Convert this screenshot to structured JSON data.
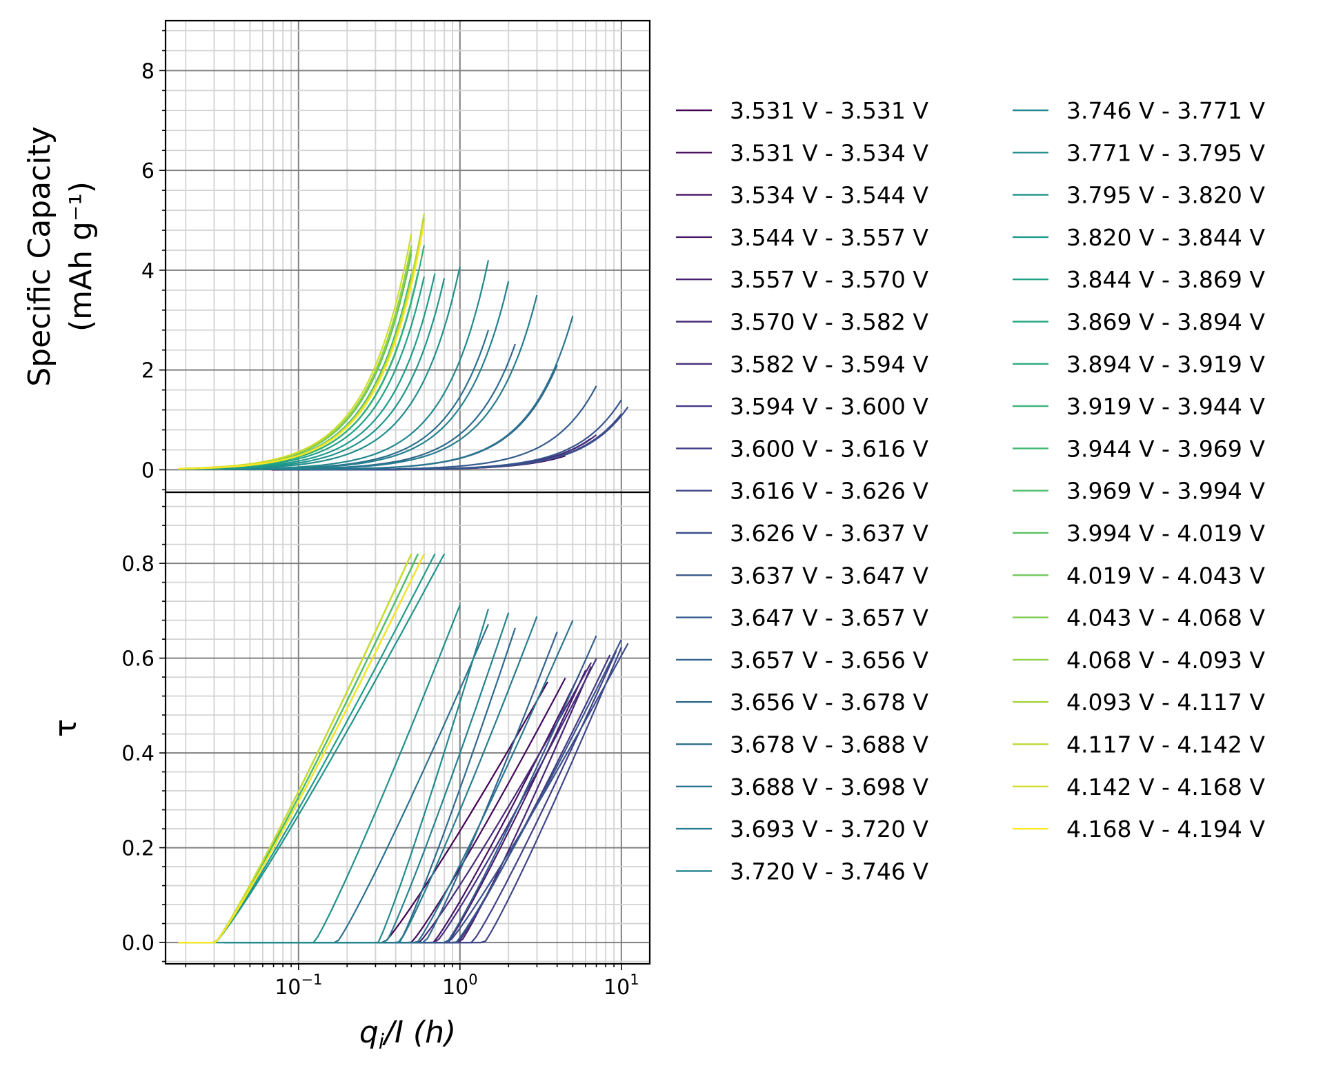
{
  "chart_data": [
    {
      "panel": "top",
      "type": "line",
      "xscale": "log",
      "xlim": [
        0.015,
        15
      ],
      "ylim": [
        -0.45,
        9.0
      ],
      "ylabel_lines": [
        "Specific Capacity",
        "(mAh g⁻¹)"
      ],
      "yticks": [
        0,
        2,
        4,
        6,
        8
      ],
      "ytick_labels": [
        "0",
        "2",
        "4",
        "6",
        "8"
      ],
      "grid": true
    },
    {
      "panel": "bottom",
      "type": "line",
      "xscale": "log",
      "xlim": [
        0.015,
        15
      ],
      "ylim": [
        -0.045,
        0.95
      ],
      "ylabel": "τ",
      "yticks": [
        0.0,
        0.2,
        0.4,
        0.6,
        0.8
      ],
      "ytick_labels": [
        "0.0",
        "0.2",
        "0.4",
        "0.6",
        "0.8"
      ],
      "xticks": [
        0.1,
        1,
        10
      ],
      "xtick_labels": [
        {
          "base": "10",
          "exp": "−1"
        },
        {
          "base": "10",
          "exp": "0"
        },
        {
          "base": "10",
          "exp": "1"
        }
      ],
      "xlabel": {
        "q": "q",
        "sub": "i",
        "rest": "/I (h)"
      },
      "grid": true
    }
  ],
  "legend": {
    "placement": "right of axes, two columns",
    "entries": [
      "3.531 V - 3.531 V",
      "3.531 V - 3.534 V",
      "3.534 V - 3.544 V",
      "3.544 V - 3.557 V",
      "3.557 V - 3.570 V",
      "3.570 V - 3.582 V",
      "3.582 V - 3.594 V",
      "3.594 V - 3.600 V",
      "3.600 V - 3.616 V",
      "3.616 V - 3.626 V",
      "3.626 V - 3.637 V",
      "3.637 V - 3.647 V",
      "3.647 V - 3.657 V",
      "3.657 V - 3.656 V",
      "3.656 V - 3.678 V",
      "3.678 V - 3.688 V",
      "3.688 V - 3.698 V",
      "3.693 V - 3.720 V",
      "3.720 V - 3.746 V",
      "3.746 V - 3.771 V",
      "3.771 V - 3.795 V",
      "3.795 V - 3.820 V",
      "3.820 V - 3.844 V",
      "3.844 V - 3.869 V",
      "3.869 V - 3.894 V",
      "3.894 V - 3.919 V",
      "3.919 V - 3.944 V",
      "3.944 V - 3.969 V",
      "3.969 V - 3.994 V",
      "3.994 V - 4.019 V",
      "4.019 V - 4.043 V",
      "4.043 V - 4.068 V",
      "4.068 V - 4.093 V",
      "4.093 V - 4.117 V",
      "4.117 V - 4.142 V",
      "4.142 V - 4.168 V",
      "4.168 V - 4.194 V"
    ]
  },
  "series_colors": [
    "#440154",
    "#450a5c",
    "#471264",
    "#48196c",
    "#482172",
    "#472978",
    "#46307e",
    "#443883",
    "#423f86",
    "#3f4789",
    "#3c4e8b",
    "#38558c",
    "#355c8d",
    "#32628e",
    "#2f698e",
    "#2c6f8e",
    "#2a758e",
    "#277b8e",
    "#25818e",
    "#23888d",
    "#218e8c",
    "#1f948b",
    "#1e9a89",
    "#20a086",
    "#24a683",
    "#2bac7f",
    "#35b279",
    "#42b873",
    "#50bd6b",
    "#5fc263",
    "#70c75a",
    "#82cc50",
    "#94d146",
    "#a8d53b",
    "#bcd832",
    "#d0dc2b",
    "#fde725"
  ],
  "curves": {
    "left_end_qI": [
      3.5,
      4.5,
      5.5,
      6.0,
      6.5,
      6.5,
      7.0,
      8.5,
      9.3,
      10.0,
      11.0,
      10.0,
      7.0,
      4.0,
      2.2,
      1.5,
      5.0,
      3.0,
      2.0,
      1.5,
      1.0,
      0.8,
      0.7,
      0.6,
      0.55,
      0.5,
      0.6,
      0.55,
      0.55,
      0.5,
      0.5,
      0.5,
      0.5,
      0.6,
      0.6,
      0.5,
      0.6
    ],
    "capacity_scale": [
      0.15,
      0.2,
      0.3,
      0.35,
      0.4,
      0.45,
      0.5,
      0.6,
      0.7,
      0.8,
      0.9,
      1.0,
      1.2,
      1.5,
      1.8,
      2.0,
      2.2,
      2.5,
      2.7,
      3.0,
      3.3,
      3.6,
      4.0,
      4.3,
      4.6,
      4.8,
      5.0,
      5.1,
      5.2,
      5.3,
      5.4,
      5.5,
      5.5,
      5.6,
      5.7,
      5.8,
      5.5
    ]
  }
}
